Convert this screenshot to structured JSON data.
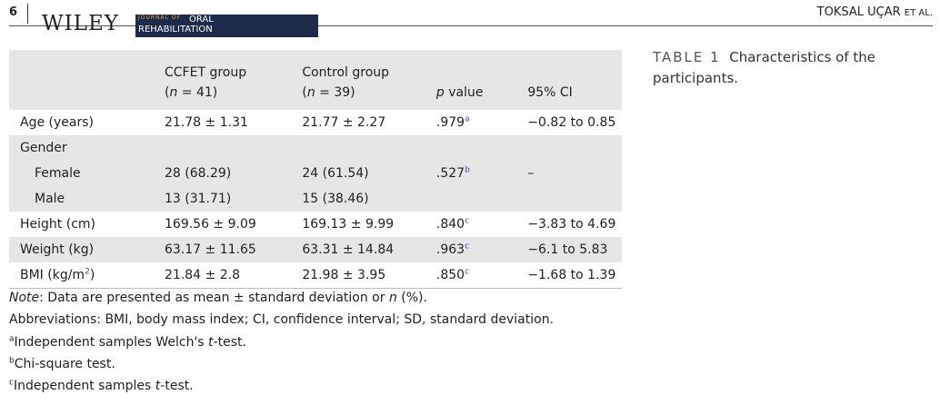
{
  "header": {
    "page_number": "6",
    "publisher": "WILEY",
    "journal_line1": "JOURNAL OF",
    "journal_line2": "ORAL",
    "journal_line3": "REHABILITATION",
    "running_head": "TOKSAL UÇAR",
    "running_head_suffix": "ET AL."
  },
  "caption": {
    "label": "TABLE 1",
    "text": "Characteristics of the participants."
  },
  "table": {
    "columns": [
      {
        "lines": [
          [
            {
              "text": "CCFET group"
            }
          ],
          [
            {
              "text": "("
            },
            {
              "text": "n",
              "style": "italic"
            },
            {
              "text": " = 41)"
            }
          ]
        ]
      },
      {
        "lines": [
          [
            {
              "text": "Control group"
            }
          ],
          [
            {
              "text": "("
            },
            {
              "text": "n",
              "style": "italic"
            },
            {
              "text": " = 39)"
            }
          ]
        ]
      },
      {
        "lines": [
          [
            {
              "text": "p",
              "style": "italic"
            },
            {
              "text": " value"
            }
          ]
        ]
      },
      {
        "lines": [
          [
            {
              "text": "95% CI"
            }
          ]
        ]
      }
    ],
    "rows": [
      {
        "cells": [
          [
            {
              "text": "Age (years)"
            }
          ],
          [
            {
              "text": "21.78 ± 1.31"
            }
          ],
          [
            {
              "text": "21.77 ± 2.27"
            }
          ],
          [
            {
              "text": ".979"
            },
            {
              "text": "a",
              "style": "sup"
            }
          ],
          [
            {
              "text": "−0.82 to 0.85"
            }
          ]
        ]
      },
      {
        "cells": [
          [
            {
              "text": "Gender"
            }
          ]
        ],
        "shaded": true
      },
      {
        "cells": [
          [
            {
              "text": "Female"
            }
          ],
          [
            {
              "text": "28 (68.29)"
            }
          ],
          [
            {
              "text": "24 (61.54)"
            }
          ],
          [
            {
              "text": ".527"
            },
            {
              "text": "b",
              "style": "sup"
            }
          ],
          [
            {
              "text": "–"
            }
          ]
        ],
        "indent": true,
        "shaded": true
      },
      {
        "cells": [
          [
            {
              "text": "Male"
            }
          ],
          [
            {
              "text": "13 (31.71)"
            }
          ],
          [
            {
              "text": "15 (38.46)"
            }
          ]
        ],
        "indent": true,
        "shaded": true
      },
      {
        "cells": [
          [
            {
              "text": "Height (cm)"
            }
          ],
          [
            {
              "text": "169.56 ± 9.09"
            }
          ],
          [
            {
              "text": "169.13 ± 9.99"
            }
          ],
          [
            {
              "text": ".840"
            },
            {
              "text": "c",
              "style": "sup"
            }
          ],
          [
            {
              "text": "−3.83 to 4.69"
            }
          ]
        ]
      },
      {
        "cells": [
          [
            {
              "text": "Weight (kg)"
            }
          ],
          [
            {
              "text": "63.17 ± 11.65"
            }
          ],
          [
            {
              "text": "63.31 ± 14.84"
            }
          ],
          [
            {
              "text": ".963"
            },
            {
              "text": "c",
              "style": "sup"
            }
          ],
          [
            {
              "text": "−6.1 to 5.83"
            }
          ]
        ],
        "shaded": true
      },
      {
        "cells": [
          [
            {
              "text": "BMI (kg/m"
            },
            {
              "text": "2",
              "style": "sup"
            },
            {
              "text": ")"
            }
          ],
          [
            {
              "text": "21.84 ± 2.8"
            }
          ],
          [
            {
              "text": "21.98 ± 3.95"
            }
          ],
          [
            {
              "text": ".850"
            },
            {
              "text": "c",
              "style": "sup"
            }
          ],
          [
            {
              "text": "−1.68 to 1.39"
            }
          ]
        ]
      }
    ]
  },
  "notes": [
    [
      {
        "text": "Note",
        "style": "italic"
      },
      {
        "text": ": Data are presented as mean ± standard deviation or "
      },
      {
        "text": "n",
        "style": "italic"
      },
      {
        "text": " (%)."
      }
    ],
    [
      {
        "text": "Abbreviations: BMI, body mass index; CI, confidence interval; SD, standard deviation."
      }
    ],
    [
      {
        "text": "a",
        "style": "sup"
      },
      {
        "text": "Independent samples Welch's "
      },
      {
        "text": "t",
        "style": "italic"
      },
      {
        "text": "-test."
      }
    ],
    [
      {
        "text": "b",
        "style": "sup"
      },
      {
        "text": "Chi-square test."
      }
    ],
    [
      {
        "text": "c",
        "style": "sup"
      },
      {
        "text": "Independent samples "
      },
      {
        "text": "t",
        "style": "italic"
      },
      {
        "text": "-test."
      }
    ]
  ]
}
